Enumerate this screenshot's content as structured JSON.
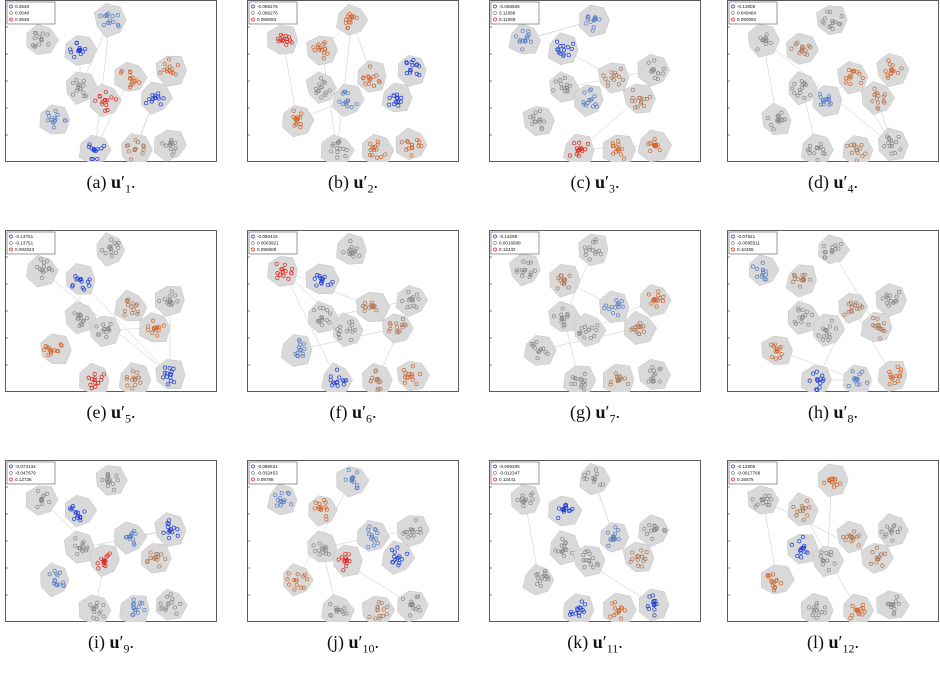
{
  "panels": [
    {
      "letter": "(a)",
      "sub": "1",
      "legend": [
        "0.0548",
        "0.0548",
        "0.0548"
      ],
      "colors": [
        "gray",
        "blue",
        "blue",
        "gray",
        "red",
        "red",
        "red",
        "blue",
        "blue",
        "blue",
        "gray",
        "gray"
      ]
    },
    {
      "letter": "(b)",
      "sub": "2",
      "legend": [
        "-0.096276",
        "-0.096276",
        "0.058093"
      ],
      "colors": [
        "red",
        "red",
        "red",
        "gray",
        "red",
        "blue",
        "blue",
        "blue",
        "red",
        "gray",
        "red",
        "red"
      ]
    },
    {
      "letter": "(c)",
      "sub": "3",
      "legend": [
        "-0.066605",
        "0.11088",
        "0.11089"
      ],
      "colors": [
        "blue",
        "blue",
        "blue",
        "gray",
        "gray",
        "gray",
        "blue",
        "gray",
        "gray",
        "red",
        "red",
        "red"
      ]
    },
    {
      "letter": "(d)",
      "sub": "4",
      "legend": [
        "-0.13805",
        "0.049484",
        "0.090092"
      ],
      "colors": [
        "gray",
        "gray",
        "gray",
        "gray",
        "red",
        "red",
        "blue",
        "gray",
        "gray",
        "gray",
        "gray",
        "gray"
      ]
    },
    {
      "letter": "(e)",
      "sub": "5",
      "legend": [
        "-0.13751",
        "-0.13751",
        "0.082843"
      ],
      "colors": [
        "gray",
        "blue",
        "gray",
        "gray",
        "gray",
        "gray",
        "gray",
        "red",
        "red",
        "red",
        "gray",
        "blue"
      ]
    },
    {
      "letter": "(f)",
      "sub": "6",
      "legend": [
        "-0.090415",
        "0.0063921",
        "0.096808"
      ],
      "colors": [
        "red",
        "blue",
        "gray",
        "gray",
        "gray",
        "gray",
        "gray",
        "gray",
        "blue",
        "blue",
        "gray",
        "red"
      ]
    },
    {
      "letter": "(g)",
      "sub": "7",
      "legend": [
        "-0.14298",
        "0.0016608",
        "0.12432"
      ],
      "colors": [
        "gray",
        "gray",
        "gray",
        "gray",
        "blue",
        "red",
        "gray",
        "gray",
        "gray",
        "gray",
        "gray",
        "gray"
      ]
    },
    {
      "letter": "(h)",
      "sub": "8",
      "legend": [
        "-0.07921",
        "-0.0095511",
        "0.10455"
      ],
      "colors": [
        "blue",
        "gray",
        "gray",
        "gray",
        "gray",
        "gray",
        "gray",
        "gray",
        "red",
        "blue",
        "blue",
        "red"
      ]
    },
    {
      "letter": "(i)",
      "sub": "9",
      "legend": [
        "-0.074134",
        "-0.047879",
        "0.12736"
      ],
      "colors": [
        "gray",
        "blue",
        "gray",
        "gray",
        "blue",
        "blue",
        "red",
        "gray",
        "blue",
        "gray",
        "blue",
        "gray"
      ]
    },
    {
      "letter": "(j)",
      "sub": "10",
      "legend": [
        "-0.086531",
        "-0.032453",
        "0.09788"
      ],
      "colors": [
        "blue",
        "red",
        "blue",
        "gray",
        "blue",
        "gray",
        "red",
        "blue",
        "red",
        "gray",
        "gray",
        "gray"
      ]
    },
    {
      "letter": "(k)",
      "sub": "11",
      "legend": [
        "-0.095305",
        "-0.012347",
        "0.12441"
      ],
      "colors": [
        "gray",
        "blue",
        "gray",
        "gray",
        "blue",
        "gray",
        "gray",
        "gray",
        "gray",
        "blue",
        "red",
        "blue"
      ]
    },
    {
      "letter": "(l)",
      "sub": "12",
      "legend": [
        "-0.12805",
        "-0.0017768",
        "0.15575"
      ],
      "colors": [
        "gray",
        "gray",
        "red",
        "blue",
        "gray",
        "gray",
        "gray",
        "gray",
        "red",
        "gray",
        "red",
        "gray"
      ]
    }
  ],
  "caption_symbol": "u",
  "palette": {
    "blue": "#1f3fd6",
    "lightblue": "#5b7fc8",
    "gray": "#8a8a8a",
    "red": "#e0281e",
    "orange": "#d4652c",
    "tan": "#b07a58",
    "hull": "#d9d9d9"
  }
}
